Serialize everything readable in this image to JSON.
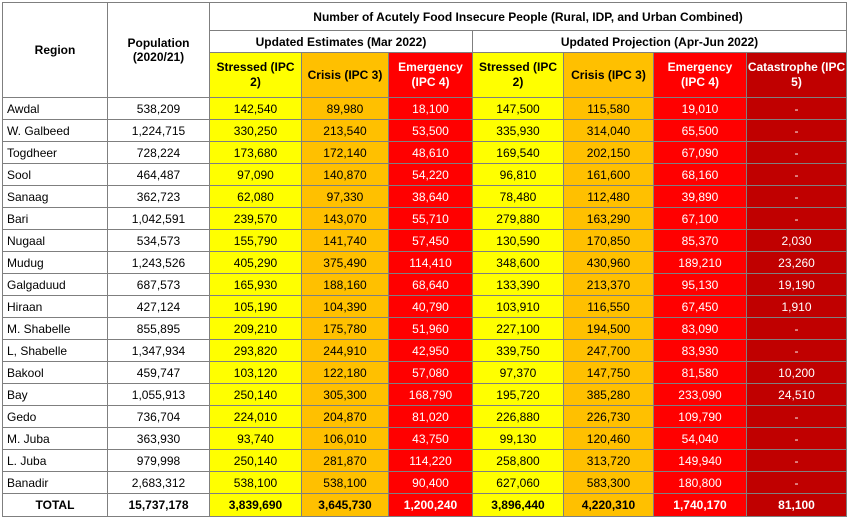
{
  "table": {
    "title": "Number of Acutely Food Insecure People (Rural, IDP, and Urban Combined)",
    "region_header": "Region",
    "population_header": "Population (2020/21)",
    "group_current": "Updated Estimates (Mar 2022)",
    "group_projection": "Updated Projection (Apr-Jun 2022)",
    "columns": {
      "stressed": "Stressed (IPC 2)",
      "crisis": "Crisis (IPC 3)",
      "emergency": "Emergency (IPC 4)",
      "catastrophe": "Catastrophe (IPC 5)"
    },
    "colors": {
      "stressed": "#ffff00",
      "crisis": "#ffc000",
      "emergency": "#ff0000",
      "catastrophe": "#c00000"
    },
    "rows": [
      {
        "region": "Awdal",
        "population": "538,209",
        "cur_stressed": "142,540",
        "cur_crisis": "89,980",
        "cur_emergency": "18,100",
        "proj_stressed": "147,500",
        "proj_crisis": "115,580",
        "proj_emergency": "19,010",
        "proj_catastrophe": "-"
      },
      {
        "region": "W. Galbeed",
        "population": "1,224,715",
        "cur_stressed": "330,250",
        "cur_crisis": "213,540",
        "cur_emergency": "53,500",
        "proj_stressed": "335,930",
        "proj_crisis": "314,040",
        "proj_emergency": "65,500",
        "proj_catastrophe": "-"
      },
      {
        "region": "Togdheer",
        "population": "728,224",
        "cur_stressed": "173,680",
        "cur_crisis": "172,140",
        "cur_emergency": "48,610",
        "proj_stressed": "169,540",
        "proj_crisis": "202,150",
        "proj_emergency": "67,090",
        "proj_catastrophe": "-"
      },
      {
        "region": "Sool",
        "population": "464,487",
        "cur_stressed": "97,090",
        "cur_crisis": "140,870",
        "cur_emergency": "54,220",
        "proj_stressed": "96,810",
        "proj_crisis": "161,600",
        "proj_emergency": "68,160",
        "proj_catastrophe": "-"
      },
      {
        "region": "Sanaag",
        "population": "362,723",
        "cur_stressed": "62,080",
        "cur_crisis": "97,330",
        "cur_emergency": "38,640",
        "proj_stressed": "78,480",
        "proj_crisis": "112,480",
        "proj_emergency": "39,890",
        "proj_catastrophe": "-"
      },
      {
        "region": "Bari",
        "population": "1,042,591",
        "cur_stressed": "239,570",
        "cur_crisis": "143,070",
        "cur_emergency": "55,710",
        "proj_stressed": "279,880",
        "proj_crisis": "163,290",
        "proj_emergency": "67,100",
        "proj_catastrophe": "-"
      },
      {
        "region": "Nugaal",
        "population": "534,573",
        "cur_stressed": "155,790",
        "cur_crisis": "141,740",
        "cur_emergency": "57,450",
        "proj_stressed": "130,590",
        "proj_crisis": "170,850",
        "proj_emergency": "85,370",
        "proj_catastrophe": "2,030"
      },
      {
        "region": "Mudug",
        "population": "1,243,526",
        "cur_stressed": "405,290",
        "cur_crisis": "375,490",
        "cur_emergency": "114,410",
        "proj_stressed": "348,600",
        "proj_crisis": "430,960",
        "proj_emergency": "189,210",
        "proj_catastrophe": "23,260"
      },
      {
        "region": "Galgaduud",
        "population": "687,573",
        "cur_stressed": "165,930",
        "cur_crisis": "188,160",
        "cur_emergency": "68,640",
        "proj_stressed": "133,390",
        "proj_crisis": "213,370",
        "proj_emergency": "95,130",
        "proj_catastrophe": "19,190"
      },
      {
        "region": "Hiraan",
        "population": "427,124",
        "cur_stressed": "105,190",
        "cur_crisis": "104,390",
        "cur_emergency": "40,790",
        "proj_stressed": "103,910",
        "proj_crisis": "116,550",
        "proj_emergency": "67,450",
        "proj_catastrophe": "1,910"
      },
      {
        "region": "M. Shabelle",
        "population": "855,895",
        "cur_stressed": "209,210",
        "cur_crisis": "175,780",
        "cur_emergency": "51,960",
        "proj_stressed": "227,100",
        "proj_crisis": "194,500",
        "proj_emergency": "83,090",
        "proj_catastrophe": "-"
      },
      {
        "region": "L, Shabelle",
        "population": "1,347,934",
        "cur_stressed": "293,820",
        "cur_crisis": "244,910",
        "cur_emergency": "42,950",
        "proj_stressed": "339,750",
        "proj_crisis": "247,700",
        "proj_emergency": "83,930",
        "proj_catastrophe": "-"
      },
      {
        "region": "Bakool",
        "population": "459,747",
        "cur_stressed": "103,120",
        "cur_crisis": "122,180",
        "cur_emergency": "57,080",
        "proj_stressed": "97,370",
        "proj_crisis": "147,750",
        "proj_emergency": "81,580",
        "proj_catastrophe": "10,200"
      },
      {
        "region": "Bay",
        "population": "1,055,913",
        "cur_stressed": "250,140",
        "cur_crisis": "305,300",
        "cur_emergency": "168,790",
        "proj_stressed": "195,720",
        "proj_crisis": "385,280",
        "proj_emergency": "233,090",
        "proj_catastrophe": "24,510"
      },
      {
        "region": "Gedo",
        "population": "736,704",
        "cur_stressed": "224,010",
        "cur_crisis": "204,870",
        "cur_emergency": "81,020",
        "proj_stressed": "226,880",
        "proj_crisis": "226,730",
        "proj_emergency": "109,790",
        "proj_catastrophe": "-"
      },
      {
        "region": "M. Juba",
        "population": "363,930",
        "cur_stressed": "93,740",
        "cur_crisis": "106,010",
        "cur_emergency": "43,750",
        "proj_stressed": "99,130",
        "proj_crisis": "120,460",
        "proj_emergency": "54,040",
        "proj_catastrophe": "-"
      },
      {
        "region": "L. Juba",
        "population": "979,998",
        "cur_stressed": "250,140",
        "cur_crisis": "281,870",
        "cur_emergency": "114,220",
        "proj_stressed": "258,800",
        "proj_crisis": "313,720",
        "proj_emergency": "149,940",
        "proj_catastrophe": "-"
      },
      {
        "region": "Banadir",
        "population": "2,683,312",
        "cur_stressed": "538,100",
        "cur_crisis": "538,100",
        "cur_emergency": "90,400",
        "proj_stressed": "627,060",
        "proj_crisis": "583,300",
        "proj_emergency": "180,800",
        "proj_catastrophe": "-"
      }
    ],
    "total": {
      "region": "TOTAL",
      "population": "15,737,178",
      "cur_stressed": "3,839,690",
      "cur_crisis": "3,645,730",
      "cur_emergency": "1,200,240",
      "proj_stressed": "3,896,440",
      "proj_crisis": "4,220,310",
      "proj_emergency": "1,740,170",
      "proj_catastrophe": "81,100"
    }
  }
}
